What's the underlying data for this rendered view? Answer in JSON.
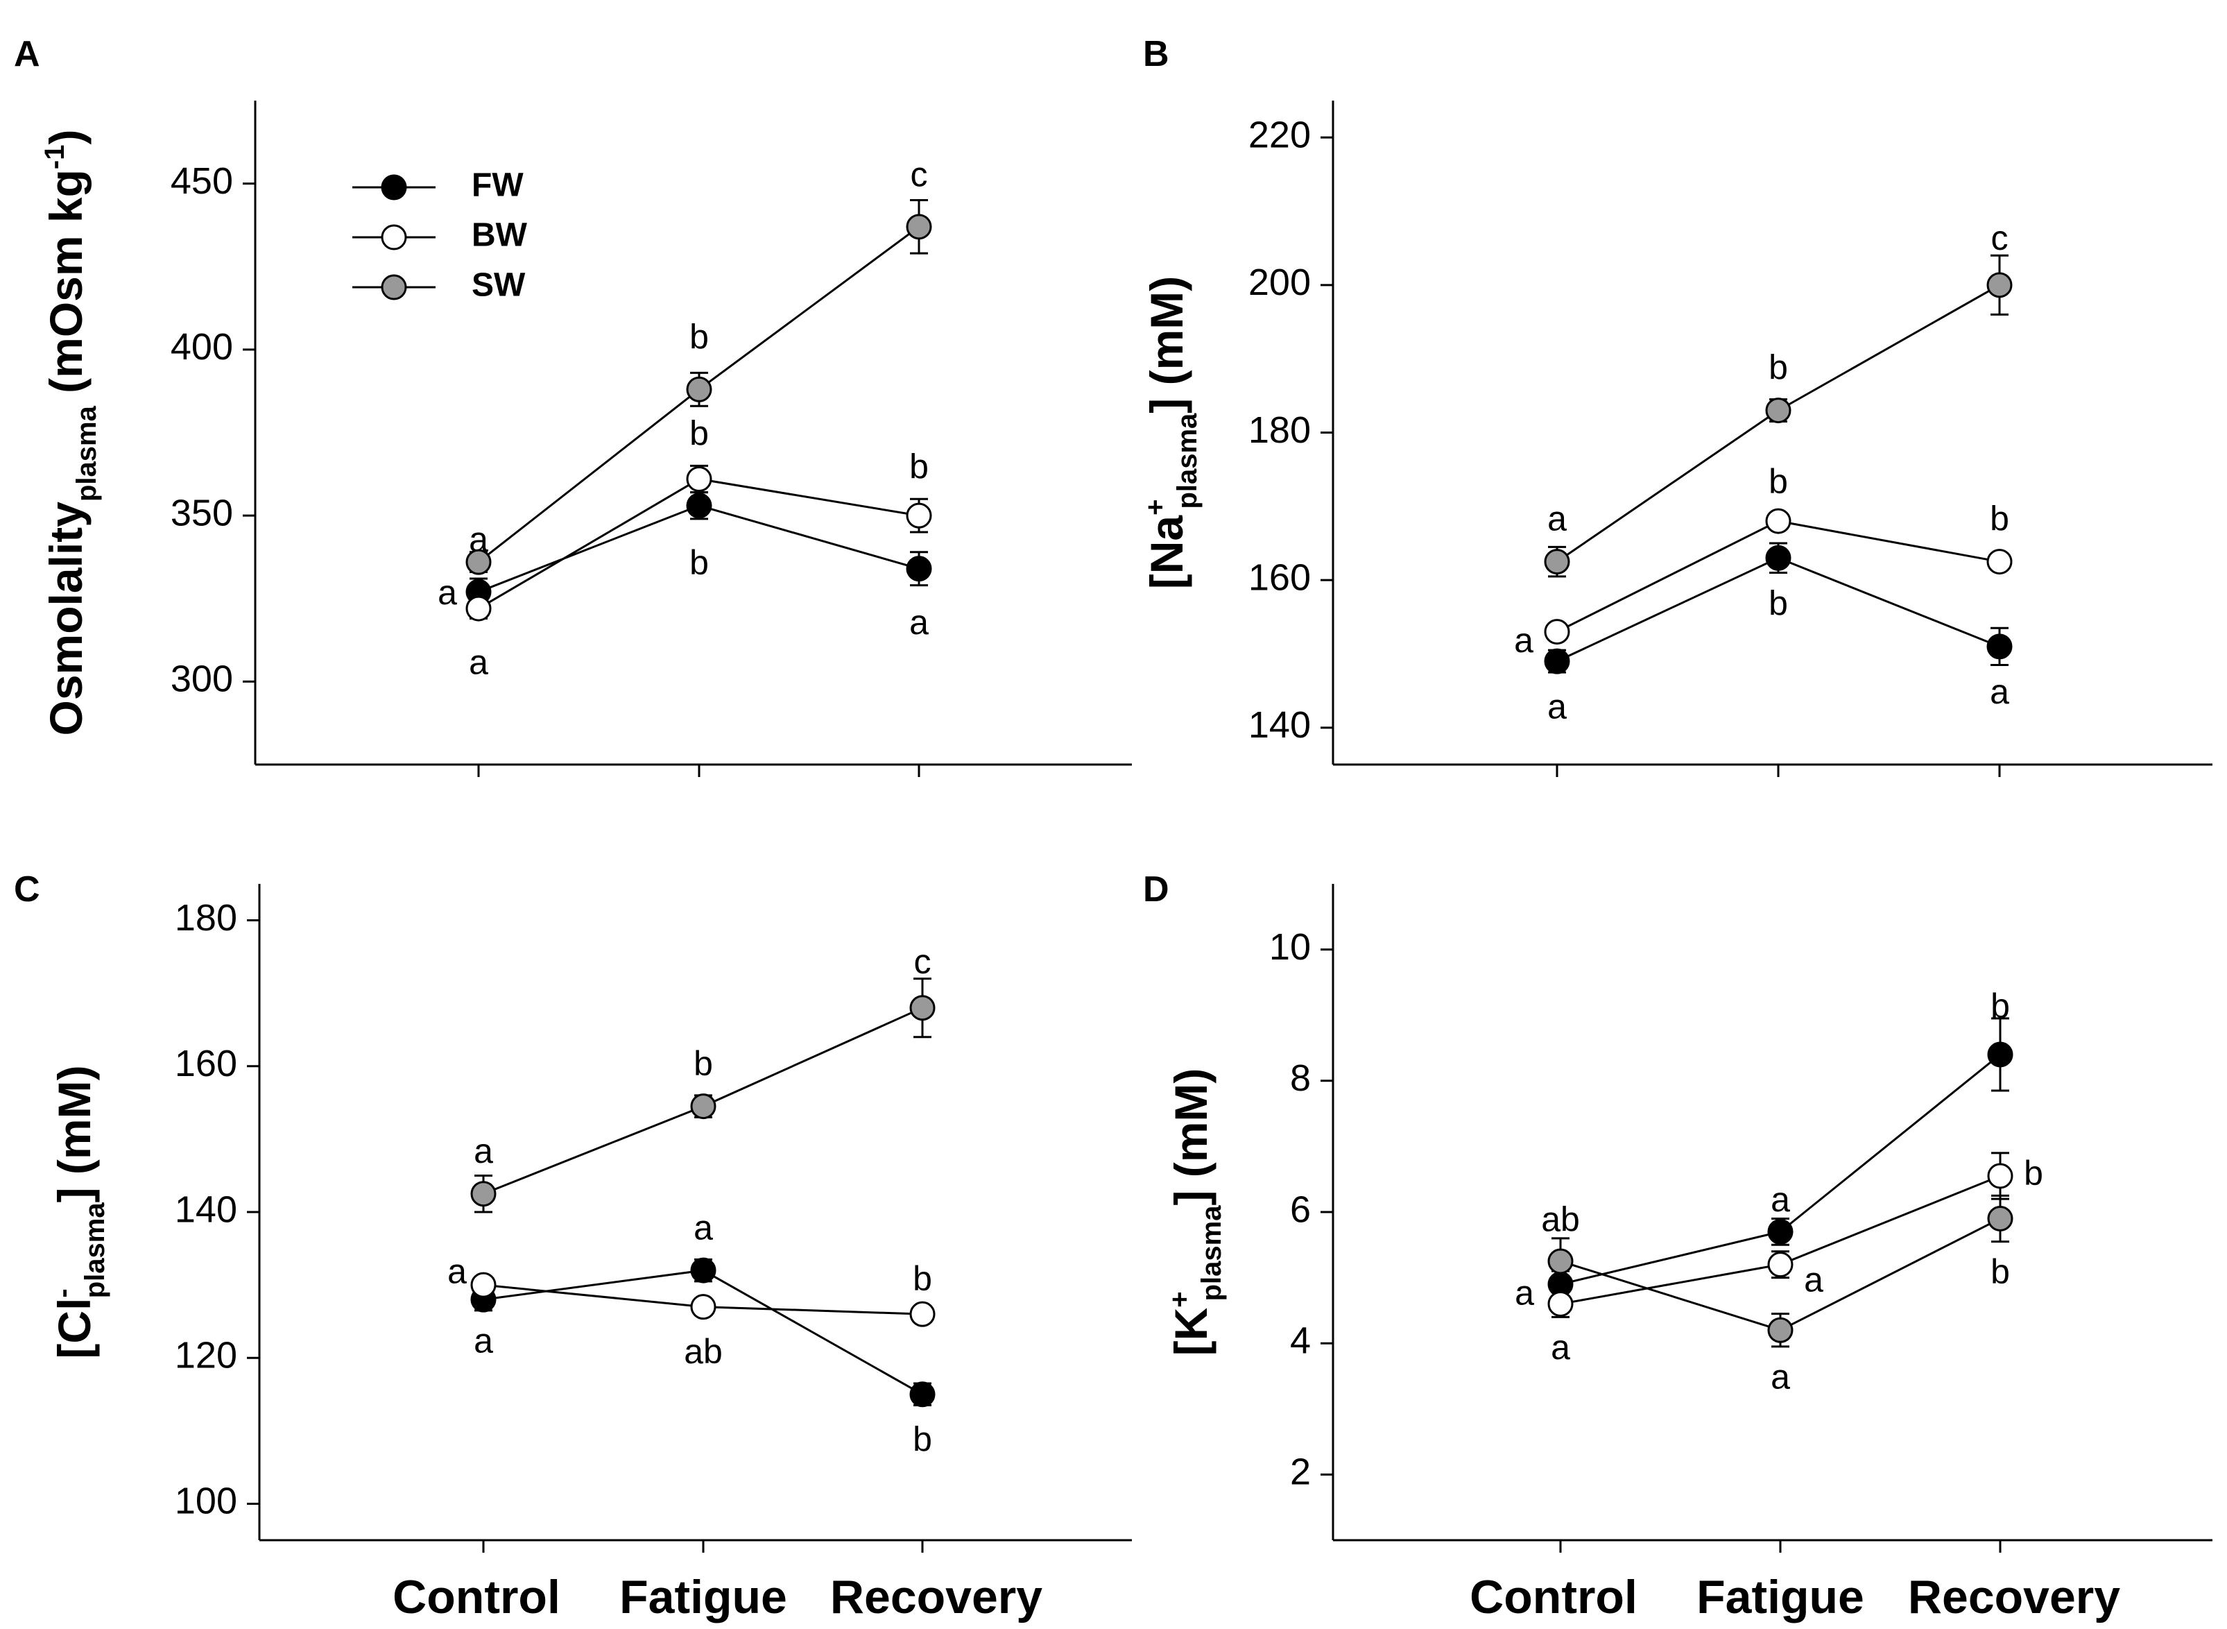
{
  "series_colors": {
    "FW": "#000000",
    "BW": "#ffffff",
    "SW": "#999999"
  },
  "x_category_labels": [
    "Control",
    "Fatigue",
    "Recovery"
  ],
  "chart_data": [
    {
      "id": "A",
      "panel_label": "A",
      "type": "line",
      "ylabel_main": "Osmolality",
      "ylabel_sub": "plasma",
      "ylabel_sup": "",
      "ylabel_tail": " (mOsm kg",
      "ylabel_tail_sup": "-1",
      "ylabel_end": ")",
      "ylim": [
        275,
        475
      ],
      "yticks": [
        300,
        350,
        400,
        450
      ],
      "categories": [
        "Control",
        "Fatigue",
        "Recovery"
      ],
      "show_legend": true,
      "legend": [
        "FW",
        "BW",
        "SW"
      ],
      "series": [
        {
          "name": "FW",
          "values": [
            327,
            353,
            334
          ],
          "errors": [
            4,
            4,
            5
          ]
        },
        {
          "name": "BW",
          "values": [
            322,
            361,
            350
          ],
          "errors": [
            3,
            4,
            5
          ]
        },
        {
          "name": "SW",
          "values": [
            336,
            388,
            437
          ],
          "errors": [
            3,
            5,
            8
          ]
        }
      ],
      "annotations": [
        {
          "text": "a",
          "ci": 0,
          "value": 342,
          "dx": 0
        },
        {
          "text": "a",
          "ci": 0,
          "value": 326,
          "dx": -45
        },
        {
          "text": "a",
          "ci": 0,
          "value": 305,
          "dx": 0
        },
        {
          "text": "b",
          "ci": 1,
          "value": 403,
          "dx": 0
        },
        {
          "text": "b",
          "ci": 1,
          "value": 374,
          "dx": 0
        },
        {
          "text": "b",
          "ci": 1,
          "value": 335,
          "dx": 0
        },
        {
          "text": "c",
          "ci": 2,
          "value": 452,
          "dx": 0
        },
        {
          "text": "b",
          "ci": 2,
          "value": 364,
          "dx": 0
        },
        {
          "text": "a",
          "ci": 2,
          "value": 317,
          "dx": 0
        }
      ]
    },
    {
      "id": "B",
      "panel_label": "B",
      "type": "line",
      "ylabel_main": "[Na",
      "ylabel_sup": "+",
      "ylabel_sub": "plasma",
      "ylabel_tail": "]",
      "ylabel_tail_sup": "",
      "ylabel_end": " (mM)",
      "ylim": [
        135,
        225
      ],
      "yticks": [
        140,
        160,
        180,
        200,
        220
      ],
      "categories": [
        "Control",
        "Fatigue",
        "Recovery"
      ],
      "show_legend": false,
      "legend": [],
      "series": [
        {
          "name": "FW",
          "values": [
            149,
            163,
            151
          ],
          "errors": [
            1.5,
            2,
            2.5
          ]
        },
        {
          "name": "BW",
          "values": [
            153,
            168,
            162.5
          ],
          "errors": [
            1,
            1,
            1
          ]
        },
        {
          "name": "SW",
          "values": [
            162.5,
            183,
            200
          ],
          "errors": [
            2,
            1.5,
            4
          ]
        }
      ],
      "annotations": [
        {
          "text": "a",
          "ci": 0,
          "value": 168,
          "dx": 0
        },
        {
          "text": "a",
          "ci": 0,
          "value": 151.5,
          "dx": -48
        },
        {
          "text": "a",
          "ci": 0,
          "value": 142.5,
          "dx": 0
        },
        {
          "text": "b",
          "ci": 1,
          "value": 188.5,
          "dx": 0
        },
        {
          "text": "b",
          "ci": 1,
          "value": 173,
          "dx": 0
        },
        {
          "text": "b",
          "ci": 1,
          "value": 156.5,
          "dx": 0
        },
        {
          "text": "c",
          "ci": 2,
          "value": 206,
          "dx": 0
        },
        {
          "text": "b",
          "ci": 2,
          "value": 168,
          "dx": 0
        },
        {
          "text": "a",
          "ci": 2,
          "value": 144.5,
          "dx": 0
        }
      ]
    },
    {
      "id": "C",
      "panel_label": "C",
      "type": "line",
      "ylabel_main": "[Cl",
      "ylabel_sup": "-",
      "ylabel_sub": "plasma",
      "ylabel_tail": "]",
      "ylabel_tail_sup": "",
      "ylabel_end": " (mM)",
      "ylim": [
        95,
        185
      ],
      "yticks": [
        100,
        120,
        140,
        160,
        180
      ],
      "categories": [
        "Control",
        "Fatigue",
        "Recovery"
      ],
      "show_legend": false,
      "legend": [],
      "series": [
        {
          "name": "FW",
          "values": [
            128,
            132,
            115
          ],
          "errors": [
            1.5,
            1.5,
            1.5
          ]
        },
        {
          "name": "BW",
          "values": [
            130,
            127,
            126
          ],
          "errors": [
            1,
            1,
            1
          ]
        },
        {
          "name": "SW",
          "values": [
            142.5,
            154.5,
            168
          ],
          "errors": [
            2.5,
            1.5,
            4
          ]
        }
      ],
      "annotations": [
        {
          "text": "a",
          "ci": 0,
          "value": 148,
          "dx": 0
        },
        {
          "text": "a",
          "ci": 0,
          "value": 131.5,
          "dx": -38
        },
        {
          "text": "a",
          "ci": 0,
          "value": 122,
          "dx": 0
        },
        {
          "text": "b",
          "ci": 1,
          "value": 160,
          "dx": 0
        },
        {
          "text": "a",
          "ci": 1,
          "value": 137.5,
          "dx": 0
        },
        {
          "text": "ab",
          "ci": 1,
          "value": 120.5,
          "dx": 0
        },
        {
          "text": "c",
          "ci": 2,
          "value": 174,
          "dx": 0
        },
        {
          "text": "b",
          "ci": 2,
          "value": 130.5,
          "dx": 0
        },
        {
          "text": "b",
          "ci": 2,
          "value": 108.5,
          "dx": 0
        }
      ]
    },
    {
      "id": "D",
      "panel_label": "D",
      "type": "line",
      "ylabel_main": "[K",
      "ylabel_sup": "+",
      "ylabel_sub": "plasma",
      "ylabel_tail": "]",
      "ylabel_tail_sup": "",
      "ylabel_end": " (mM)",
      "ylim": [
        1,
        11
      ],
      "yticks": [
        2,
        4,
        6,
        8,
        10
      ],
      "categories": [
        "Control",
        "Fatigue",
        "Recovery"
      ],
      "show_legend": false,
      "legend": [],
      "series": [
        {
          "name": "FW",
          "values": [
            4.9,
            5.7,
            8.4
          ],
          "errors": [
            0.2,
            0.2,
            0.55
          ]
        },
        {
          "name": "BW",
          "values": [
            4.6,
            5.2,
            6.55
          ],
          "errors": [
            0.2,
            0.2,
            0.35
          ]
        },
        {
          "name": "SW",
          "values": [
            5.25,
            4.2,
            5.9
          ],
          "errors": [
            0.35,
            0.25,
            0.35
          ]
        }
      ],
      "annotations": [
        {
          "text": "ab",
          "ci": 0,
          "value": 5.85,
          "dx": 0
        },
        {
          "text": "a",
          "ci": 0,
          "value": 4.73,
          "dx": -52
        },
        {
          "text": "a",
          "ci": 0,
          "value": 3.9,
          "dx": 0
        },
        {
          "text": "a",
          "ci": 1,
          "value": 6.15,
          "dx": 0
        },
        {
          "text": "a",
          "ci": 1,
          "value": 4.93,
          "dx": 48
        },
        {
          "text": "a",
          "ci": 1,
          "value": 3.45,
          "dx": 0
        },
        {
          "text": "b",
          "ci": 2,
          "value": 9.1,
          "dx": 0
        },
        {
          "text": "b",
          "ci": 2,
          "value": 6.55,
          "dx": 48
        },
        {
          "text": "b",
          "ci": 2,
          "value": 5.05,
          "dx": 0
        }
      ]
    }
  ]
}
